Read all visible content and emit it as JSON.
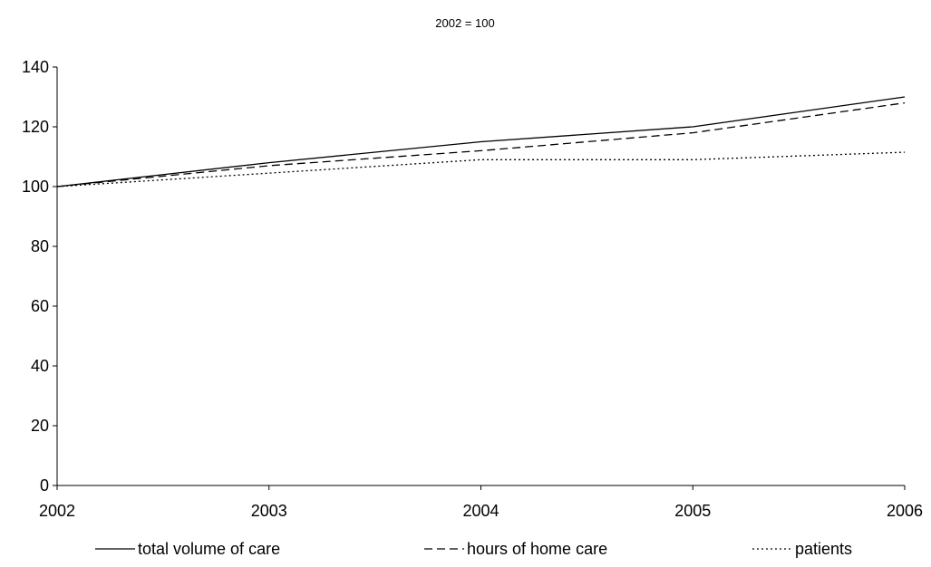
{
  "chart_data": {
    "type": "line",
    "subtitle": "2002 = 100",
    "x": [
      "2002",
      "2003",
      "2004",
      "2005",
      "2006"
    ],
    "ylim": [
      0,
      140
    ],
    "y_ticks": [
      "0",
      "20",
      "40",
      "60",
      "80",
      "100",
      "120",
      "140"
    ],
    "grid": false,
    "legend_position": "bottom",
    "series": [
      {
        "name": "total volume of care",
        "values": [
          100,
          108,
          115,
          120,
          130
        ],
        "line_style": "solid",
        "color": "#000000"
      },
      {
        "name": "hours of home care",
        "values": [
          100,
          107,
          112,
          118,
          128
        ],
        "line_style": "dashed",
        "color": "#000000"
      },
      {
        "name": "patients",
        "values": [
          100,
          104.5,
          109,
          109,
          111.5
        ],
        "line_style": "dotted",
        "color": "#000000"
      }
    ]
  }
}
